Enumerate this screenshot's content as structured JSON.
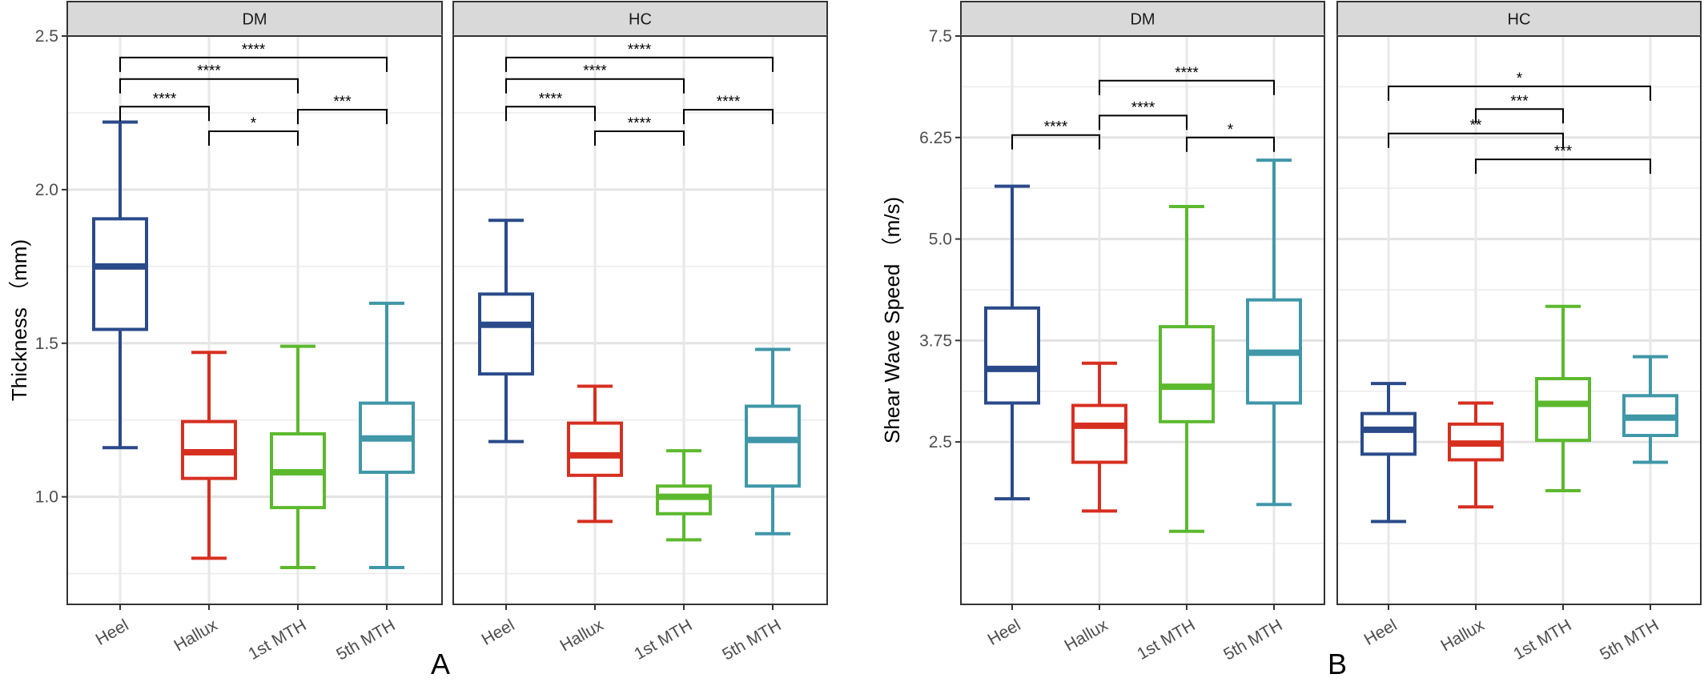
{
  "chart_data": [
    {
      "type": "boxplot",
      "panel_label": "A",
      "ylabel": "Thickness （mm)",
      "ylim": [
        0.65,
        2.5
      ],
      "y_ticks": [
        1.0,
        1.5,
        2.0,
        2.5
      ],
      "y_tick_labels": [
        "1.0",
        "1.5",
        "2.0",
        "2.5"
      ],
      "minor_gridlines": [
        0.75,
        1.25,
        1.75,
        2.25
      ],
      "categories": [
        "Heel",
        "Hallux",
        "1st MTH",
        "5th MTH"
      ],
      "category_colors": [
        "#2a4a8a",
        "#d62f20",
        "#5cb92e",
        "#3f97a8"
      ],
      "facets": [
        {
          "strip": "DM",
          "boxes": [
            {
              "category": "Heel",
              "min": 1.16,
              "q1": 1.545,
              "median": 1.75,
              "q3": 1.905,
              "max": 2.22
            },
            {
              "category": "Hallux",
              "min": 0.8,
              "q1": 1.06,
              "median": 1.145,
              "q3": 1.245,
              "max": 1.47
            },
            {
              "category": "1st MTH",
              "min": 0.77,
              "q1": 0.965,
              "median": 1.08,
              "q3": 1.205,
              "max": 1.49
            },
            {
              "category": "5th MTH",
              "min": 0.77,
              "q1": 1.08,
              "median": 1.19,
              "q3": 1.305,
              "max": 1.63
            }
          ],
          "comparisons": [
            {
              "from": "Heel",
              "to": "5th MTH",
              "y": 2.43,
              "label": "****"
            },
            {
              "from": "Heel",
              "to": "1st MTH",
              "y": 2.36,
              "label": "****"
            },
            {
              "from": "Heel",
              "to": "Hallux",
              "y": 2.27,
              "label": "****"
            },
            {
              "from": "1st MTH",
              "to": "5th MTH",
              "y": 2.26,
              "label": "***"
            },
            {
              "from": "Hallux",
              "to": "1st MTH",
              "y": 2.19,
              "label": "*"
            }
          ]
        },
        {
          "strip": "HC",
          "boxes": [
            {
              "category": "Heel",
              "min": 1.18,
              "q1": 1.4,
              "median": 1.56,
              "q3": 1.66,
              "max": 1.9
            },
            {
              "category": "Hallux",
              "min": 0.92,
              "q1": 1.07,
              "median": 1.135,
              "q3": 1.24,
              "max": 1.36
            },
            {
              "category": "1st MTH",
              "min": 0.86,
              "q1": 0.945,
              "median": 1.0,
              "q3": 1.035,
              "max": 1.15
            },
            {
              "category": "5th MTH",
              "min": 0.88,
              "q1": 1.035,
              "median": 1.185,
              "q3": 1.295,
              "max": 1.48
            }
          ],
          "comparisons": [
            {
              "from": "Heel",
              "to": "5th MTH",
              "y": 2.43,
              "label": "****"
            },
            {
              "from": "Heel",
              "to": "1st MTH",
              "y": 2.36,
              "label": "****"
            },
            {
              "from": "Heel",
              "to": "Hallux",
              "y": 2.27,
              "label": "****"
            },
            {
              "from": "1st MTH",
              "to": "5th MTH",
              "y": 2.26,
              "label": "****"
            },
            {
              "from": "Hallux",
              "to": "1st MTH",
              "y": 2.19,
              "label": "****"
            }
          ]
        }
      ]
    },
    {
      "type": "boxplot",
      "panel_label": "B",
      "ylabel": "Shear Wave Speed （m/s)",
      "ylim": [
        0.5,
        7.5
      ],
      "y_ticks": [
        2.5,
        3.75,
        5.0,
        6.25,
        7.5
      ],
      "y_tick_labels": [
        "2.5",
        "3.75",
        "5.0",
        "6.25",
        "7.5"
      ],
      "minor_gridlines": [
        1.25,
        3.125,
        4.375,
        5.625,
        6.875
      ],
      "categories": [
        "Heel",
        "Hallux",
        "1st MTH",
        "5th MTH"
      ],
      "category_colors": [
        "#2a4a8a",
        "#d62f20",
        "#5cb92e",
        "#3f97a8"
      ],
      "facets": [
        {
          "strip": "DM",
          "boxes": [
            {
              "category": "Heel",
              "min": 1.8,
              "q1": 2.98,
              "median": 3.4,
              "q3": 4.15,
              "max": 5.65
            },
            {
              "category": "Hallux",
              "min": 1.65,
              "q1": 2.25,
              "median": 2.7,
              "q3": 2.95,
              "max": 3.47
            },
            {
              "category": "1st MTH",
              "min": 1.4,
              "q1": 2.75,
              "median": 3.18,
              "q3": 3.92,
              "max": 5.4
            },
            {
              "category": "5th MTH",
              "min": 1.73,
              "q1": 2.98,
              "median": 3.6,
              "q3": 4.25,
              "max": 5.97
            }
          ],
          "comparisons": [
            {
              "from": "Hallux",
              "to": "5th MTH",
              "y": 6.95,
              "label": "****"
            },
            {
              "from": "Hallux",
              "to": "1st MTH",
              "y": 6.52,
              "label": "****"
            },
            {
              "from": "Heel",
              "to": "Hallux",
              "y": 6.28,
              "label": "****"
            },
            {
              "from": "1st MTH",
              "to": "5th MTH",
              "y": 6.25,
              "label": "*"
            }
          ]
        },
        {
          "strip": "HC",
          "boxes": [
            {
              "category": "Heel",
              "min": 1.52,
              "q1": 2.35,
              "median": 2.65,
              "q3": 2.85,
              "max": 3.22
            },
            {
              "category": "Hallux",
              "min": 1.7,
              "q1": 2.28,
              "median": 2.48,
              "q3": 2.72,
              "max": 2.98
            },
            {
              "category": "1st MTH",
              "min": 1.9,
              "q1": 2.52,
              "median": 2.97,
              "q3": 3.28,
              "max": 4.17
            },
            {
              "category": "5th MTH",
              "min": 2.25,
              "q1": 2.58,
              "median": 2.8,
              "q3": 3.07,
              "max": 3.55
            }
          ],
          "comparisons": [
            {
              "from": "Heel",
              "to": "5th MTH",
              "y": 6.88,
              "label": "*"
            },
            {
              "from": "Hallux",
              "to": "1st MTH",
              "y": 6.6,
              "label": "***"
            },
            {
              "from": "Heel",
              "to": "1st MTH",
              "y": 6.3,
              "label": "**"
            },
            {
              "from": "Hallux",
              "to": "5th MTH",
              "y": 5.98,
              "label": "***"
            }
          ]
        }
      ]
    }
  ]
}
